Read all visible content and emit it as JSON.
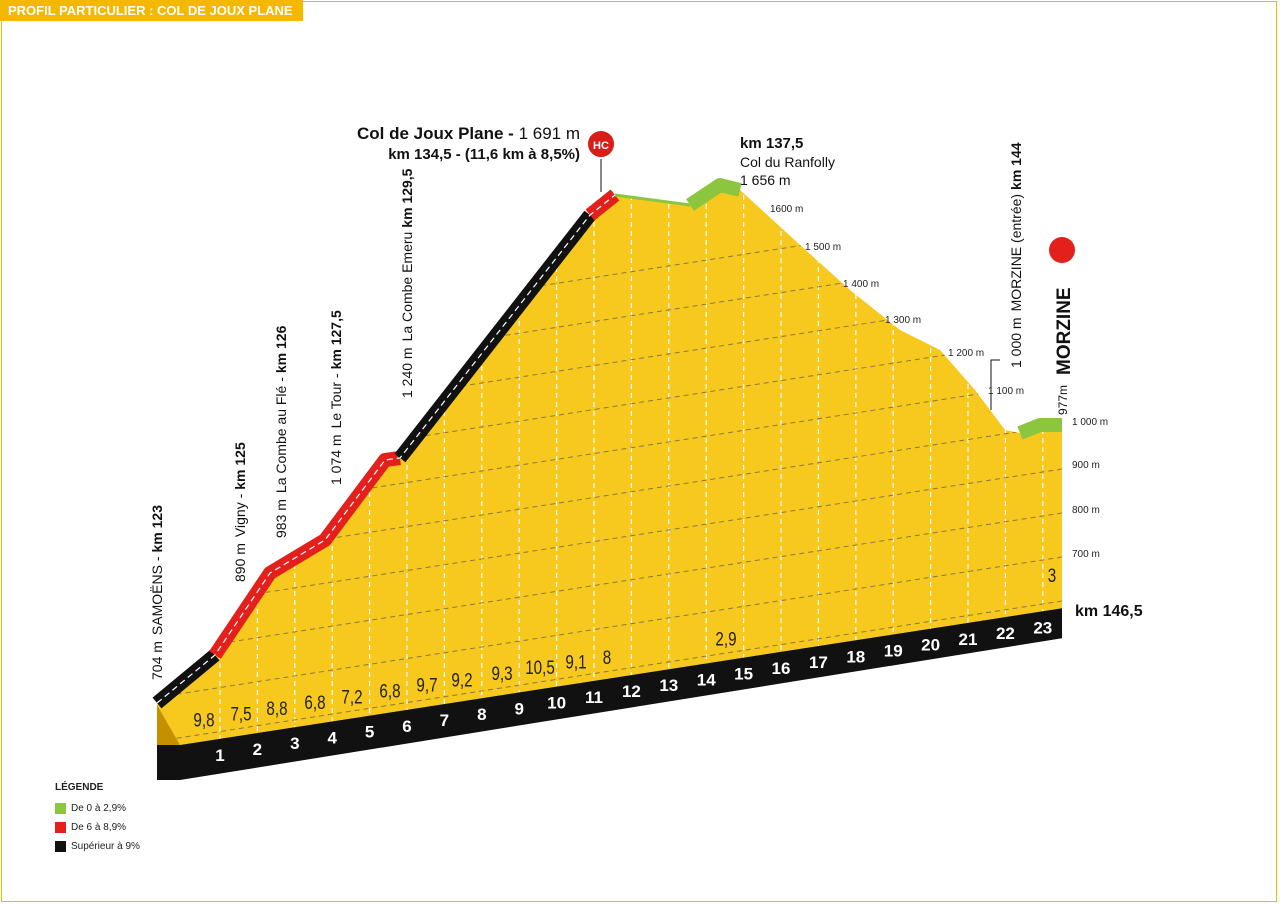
{
  "header": {
    "title": "PROFIL PARTICULIER : COL DE JOUX PLANE"
  },
  "summit": {
    "name": "Col de Joux Plane - ",
    "altitude": "1 691 m",
    "detail": "km 134,5 - (11,6 km à 8,5%)",
    "category": "HC"
  },
  "ranfolly": {
    "km": "km 137,5",
    "name": "Col du Ranfolly",
    "altitude": "1 656 m"
  },
  "altitude_lines": [
    "1600 m",
    "1 500 m",
    "1 400 m",
    "1 300 m",
    "1 200 m",
    "1 100 m",
    "1 000 m",
    "900 m",
    "800 m",
    "700 m"
  ],
  "places": [
    {
      "altitude": "704 m",
      "name": "SAMOËNS -",
      "km": "km 123"
    },
    {
      "altitude": "890 m",
      "name": "Vigny -",
      "km": "km 125"
    },
    {
      "altitude": "983 m",
      "name": "La Combe au Flé -",
      "km": "km 126"
    },
    {
      "altitude": "1 074 m",
      "name": "Le Tour -",
      "km": "km 127,5"
    },
    {
      "altitude": "1 240 m",
      "name": "La Combe Emeru",
      "km": "km 129,5"
    },
    {
      "altitude": "1 000 m",
      "name": "MORZINE (entrée)",
      "km": "km 144"
    }
  ],
  "finish": {
    "altitude": "977m",
    "name": "MORZINE",
    "km": "km 146,5"
  },
  "km_markers": [
    "1",
    "2",
    "3",
    "4",
    "5",
    "6",
    "7",
    "8",
    "9",
    "10",
    "11",
    "12",
    "13",
    "14",
    "15",
    "16",
    "17",
    "18",
    "19",
    "20",
    "21",
    "22",
    "23"
  ],
  "gradients": [
    "9,8",
    "7,5",
    "8,8",
    "6,8",
    "7,2",
    "6,8",
    "9,7",
    "9,2",
    "9,3",
    "10,5",
    "9,1",
    "8",
    "2,9",
    "3"
  ],
  "legend": {
    "title": "LÉGENDE",
    "items": [
      "De 0 à 2,9%",
      "De 6 à 8,9%",
      "Supérieur à 9%"
    ]
  }
}
